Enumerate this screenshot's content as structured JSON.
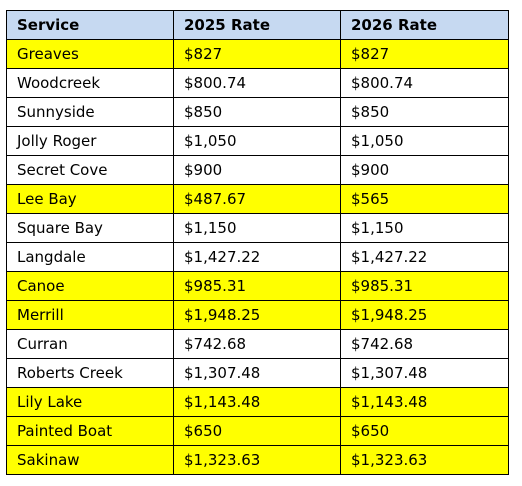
{
  "table": {
    "headers": [
      "Service",
      "2025 Rate",
      "2026 Rate"
    ],
    "highlight_color": "#ffff00",
    "header_color": "#c6d9f1",
    "rows": [
      {
        "service": "Greaves",
        "rate_2025": "$827",
        "rate_2026": "$827",
        "highlighted": true
      },
      {
        "service": "Woodcreek",
        "rate_2025": "$800.74",
        "rate_2026": "$800.74",
        "highlighted": false
      },
      {
        "service": "Sunnyside",
        "rate_2025": "$850",
        "rate_2026": "$850",
        "highlighted": false
      },
      {
        "service": "Jolly Roger",
        "rate_2025": "$1,050",
        "rate_2026": "$1,050",
        "highlighted": false
      },
      {
        "service": "Secret Cove",
        "rate_2025": "$900",
        "rate_2026": "$900",
        "highlighted": false
      },
      {
        "service": "Lee Bay",
        "rate_2025": "$487.67",
        "rate_2026": "$565",
        "highlighted": true
      },
      {
        "service": "Square Bay",
        "rate_2025": "$1,150",
        "rate_2026": "$1,150",
        "highlighted": false
      },
      {
        "service": "Langdale",
        "rate_2025": "$1,427.22",
        "rate_2026": "$1,427.22",
        "highlighted": false
      },
      {
        "service": "Canoe",
        "rate_2025": "$985.31",
        "rate_2026": "$985.31",
        "highlighted": true
      },
      {
        "service": "Merrill",
        "rate_2025": "$1,948.25",
        "rate_2026": "$1,948.25",
        "highlighted": true
      },
      {
        "service": "Curran",
        "rate_2025": "$742.68",
        "rate_2026": "$742.68",
        "highlighted": false
      },
      {
        "service": "Roberts Creek",
        "rate_2025": "$1,307.48",
        "rate_2026": "$1,307.48",
        "highlighted": false
      },
      {
        "service": "Lily Lake",
        "rate_2025": "$1,143.48",
        "rate_2026": "$1,143.48",
        "highlighted": true
      },
      {
        "service": "Painted Boat",
        "rate_2025": "$650",
        "rate_2026": "$650",
        "highlighted": true
      },
      {
        "service": "Sakinaw",
        "rate_2025": "$1,323.63",
        "rate_2026": "$1,323.63",
        "highlighted": true
      }
    ]
  }
}
